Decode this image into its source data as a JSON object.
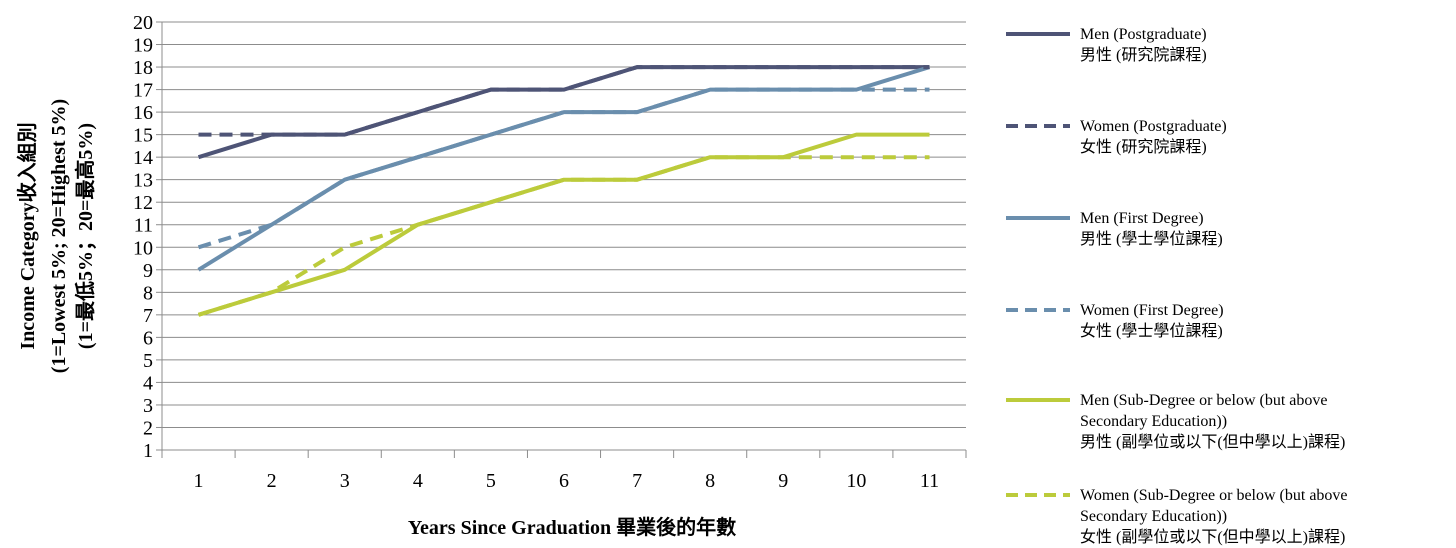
{
  "chart_data": {
    "type": "line",
    "title": "",
    "xlabel": "Years Since Graduation  畢業後的年數",
    "ylabel_lines": [
      "Income Category收入組別",
      "(1=Lowest 5%; 20=Highest 5%)",
      "(1=最低5%；20=最高5%)"
    ],
    "categories": [
      1,
      2,
      3,
      4,
      5,
      6,
      7,
      8,
      9,
      10,
      11
    ],
    "ylim": [
      1,
      20
    ],
    "grid": true,
    "legend_position": "right",
    "series": [
      {
        "name_lines": [
          "Men (Postgraduate)",
          "男性 (研究院課程)"
        ],
        "color": "#4e5476",
        "dash": "solid",
        "values": [
          14,
          15,
          15,
          16,
          17,
          17,
          18,
          18,
          18,
          18,
          18
        ]
      },
      {
        "name_lines": [
          "Women (Postgraduate)",
          "女性 (研究院課程)"
        ],
        "color": "#4e5476",
        "dash": "dashed",
        "values": [
          15,
          15,
          15,
          16,
          17,
          17,
          18,
          18,
          18,
          18,
          18
        ]
      },
      {
        "name_lines": [
          "Men (First Degree)",
          "男性 (學士學位課程)"
        ],
        "color": "#6a8ead",
        "dash": "solid",
        "values": [
          9,
          11,
          13,
          14,
          15,
          16,
          16,
          17,
          17,
          17,
          18
        ]
      },
      {
        "name_lines": [
          "Women (First Degree)",
          "女性 (學士學位課程)"
        ],
        "color": "#6a8ead",
        "dash": "dashed",
        "values": [
          10,
          11,
          13,
          14,
          15,
          16,
          16,
          17,
          17,
          17,
          17
        ]
      },
      {
        "name_lines": [
          "Men (Sub-Degree or below (but above",
          "Secondary Education))",
          "男性 (副學位或以下(但中學以上)課程)"
        ],
        "color": "#bccb3b",
        "dash": "solid",
        "values": [
          7,
          8,
          9,
          11,
          12,
          13,
          13,
          14,
          14,
          15,
          15
        ]
      },
      {
        "name_lines": [
          "Women (Sub-Degree or below (but above",
          "Secondary Education))",
          "女性 (副學位或以下(但中學以上)課程)"
        ],
        "color": "#bccb3b",
        "dash": "dashed",
        "values": [
          7,
          8,
          10,
          11,
          12,
          13,
          13,
          14,
          14,
          14,
          14
        ]
      }
    ]
  }
}
